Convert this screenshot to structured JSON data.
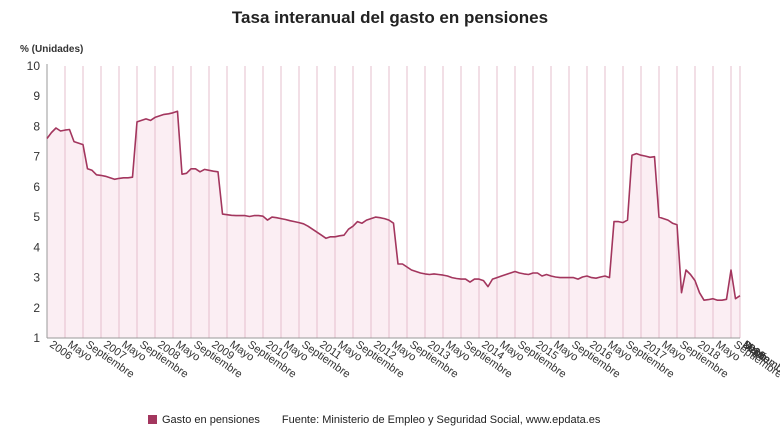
{
  "chart_data": {
    "type": "area",
    "title": "Tasa interanual del gasto en pensiones",
    "ylabel": "% (Unidades)",
    "ylim": [
      1,
      10
    ],
    "yticks": [
      1,
      2,
      3,
      4,
      5,
      6,
      7,
      8,
      9,
      10
    ],
    "grid": "vertical",
    "legend_position": "bottom",
    "source": "Fuente: Ministerio de Empleo y Seguridad Social, www.epdata.es",
    "colors": {
      "line": "#a3365e",
      "fill": "#fbeef3",
      "grid": "#e4bfcc"
    },
    "x_start": "2006-01",
    "x_ticks": [
      {
        "month": 0,
        "label": "2006"
      },
      {
        "month": 4,
        "label": "Mayo"
      },
      {
        "month": 8,
        "label": "Septiembre"
      },
      {
        "month": 12,
        "label": "2007"
      },
      {
        "month": 16,
        "label": "Mayo"
      },
      {
        "month": 20,
        "label": "Septiembre"
      },
      {
        "month": 24,
        "label": "2008"
      },
      {
        "month": 28,
        "label": "Mayo"
      },
      {
        "month": 32,
        "label": "Septiembre"
      },
      {
        "month": 36,
        "label": "2009"
      },
      {
        "month": 40,
        "label": "Mayo"
      },
      {
        "month": 44,
        "label": "Septiembre"
      },
      {
        "month": 48,
        "label": "2010"
      },
      {
        "month": 52,
        "label": "Mayo"
      },
      {
        "month": 56,
        "label": "Septiembre"
      },
      {
        "month": 60,
        "label": "2011"
      },
      {
        "month": 64,
        "label": "Mayo"
      },
      {
        "month": 68,
        "label": "Septiembre"
      },
      {
        "month": 72,
        "label": "2012"
      },
      {
        "month": 76,
        "label": "Mayo"
      },
      {
        "month": 80,
        "label": "Septiembre"
      },
      {
        "month": 84,
        "label": "2013"
      },
      {
        "month": 88,
        "label": "Mayo"
      },
      {
        "month": 92,
        "label": "Septiembre"
      },
      {
        "month": 96,
        "label": "2014"
      },
      {
        "month": 100,
        "label": "Mayo"
      },
      {
        "month": 104,
        "label": "Septiembre"
      },
      {
        "month": 108,
        "label": "2015"
      },
      {
        "month": 112,
        "label": "Mayo"
      },
      {
        "month": 116,
        "label": "Septiembre"
      },
      {
        "month": 120,
        "label": "2016"
      },
      {
        "month": 124,
        "label": "Mayo"
      },
      {
        "month": 128,
        "label": "Septiembre"
      },
      {
        "month": 132,
        "label": "2017"
      },
      {
        "month": 136,
        "label": "Mayo"
      },
      {
        "month": 140,
        "label": "Septiembre"
      },
      {
        "month": 144,
        "label": "2018"
      },
      {
        "month": 148,
        "label": "Mayo"
      },
      {
        "month": 152,
        "label": "Septiembre"
      },
      {
        "month": 156,
        "label": "2019"
      },
      {
        "month": 160,
        "label": "Mayo"
      },
      {
        "month": 164,
        "label": "Septiembre"
      },
      {
        "month": 168,
        "label": "2020"
      },
      {
        "month": 172,
        "label": "Mayo"
      },
      {
        "month": 176,
        "label": "Septiembre"
      },
      {
        "month": 182,
        "label": "Marzo"
      }
    ],
    "series": [
      {
        "name": "Gasto en pensiones",
        "values": [
          7.6,
          7.8,
          7.95,
          7.85,
          7.88,
          7.9,
          7.5,
          7.45,
          7.4,
          6.6,
          6.55,
          6.4,
          6.38,
          6.35,
          6.3,
          6.25,
          6.28,
          6.3,
          6.3,
          6.32,
          8.15,
          8.2,
          8.25,
          8.2,
          8.3,
          8.35,
          8.4,
          8.42,
          8.45,
          8.5,
          6.42,
          6.45,
          6.6,
          6.6,
          6.5,
          6.58,
          6.55,
          6.52,
          6.5,
          5.1,
          5.08,
          5.06,
          5.05,
          5.05,
          5.05,
          5.02,
          5.05,
          5.05,
          5.03,
          4.9,
          5.0,
          4.98,
          4.95,
          4.92,
          4.88,
          4.85,
          4.82,
          4.78,
          4.7,
          4.6,
          4.5,
          4.4,
          4.3,
          4.35,
          4.35,
          4.38,
          4.4,
          4.6,
          4.7,
          4.85,
          4.8,
          4.9,
          4.95,
          5.0,
          4.98,
          4.95,
          4.9,
          4.8,
          3.45,
          3.45,
          3.35,
          3.25,
          3.2,
          3.15,
          3.12,
          3.1,
          3.12,
          3.1,
          3.08,
          3.05,
          3.0,
          2.97,
          2.95,
          2.95,
          2.85,
          2.95,
          2.95,
          2.9,
          2.7,
          2.95,
          3.0,
          3.05,
          3.1,
          3.15,
          3.2,
          3.15,
          3.12,
          3.1,
          3.15,
          3.15,
          3.05,
          3.1,
          3.05,
          3.02,
          3.0,
          3.0,
          3.0,
          3.0,
          2.95,
          3.02,
          3.05,
          3.0,
          2.98,
          3.02,
          3.05,
          3.0,
          4.85,
          4.85,
          4.82,
          4.9,
          7.05,
          7.1,
          7.05,
          7.02,
          6.98,
          7.0,
          5.0,
          4.95,
          4.9,
          4.8,
          4.75,
          2.5,
          3.25,
          3.1,
          2.9,
          2.5,
          2.25,
          2.27,
          2.3,
          2.25,
          2.25,
          2.28,
          3.25,
          2.3,
          2.4
        ]
      }
    ]
  }
}
